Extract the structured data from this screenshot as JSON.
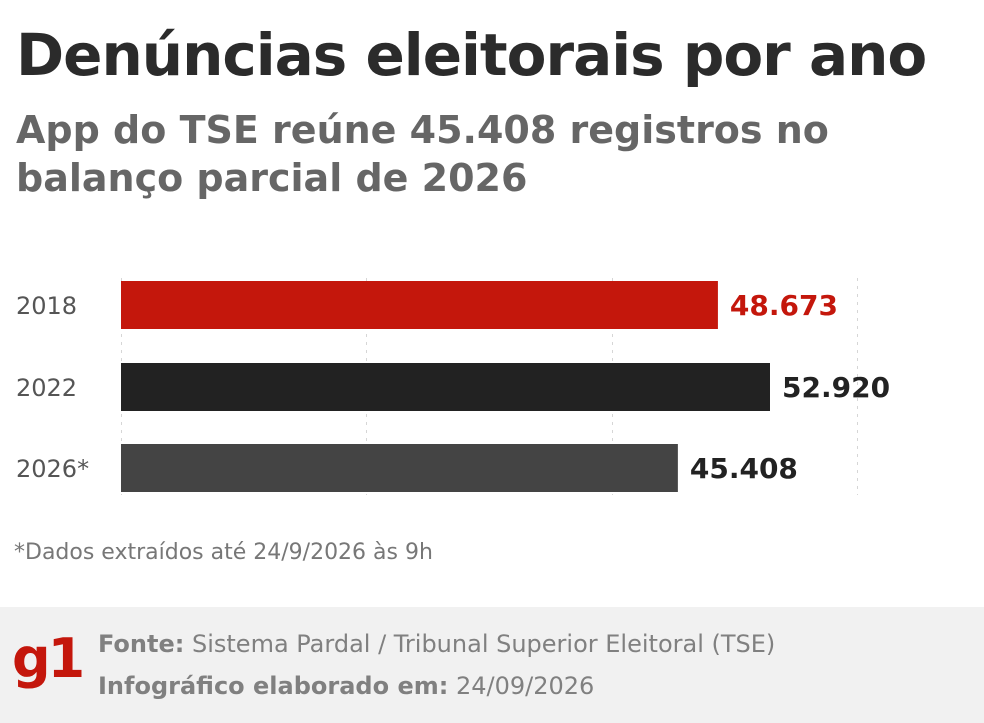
{
  "title": "Denúncias eleitorais por ano",
  "subtitle": "App do TSE reúne 45.408 registros no balanço parcial de 2026",
  "footnote": "*Dados extraídos até 24/9/2026 às 9h",
  "footer": {
    "logo_text": "g1",
    "source_label": "Fonte:",
    "source_text": "Sistema Pardal / Tribunal Superior Eleitoral (TSE)",
    "date_label": "Infográfico elaborado em:",
    "date_text": "24/09/2026"
  },
  "colors": {
    "brand_red": "#c4170c",
    "bar_2022": "#222222",
    "bar_2026": "#444444"
  },
  "chart_data": {
    "type": "bar",
    "orientation": "horizontal",
    "categories": [
      "2018",
      "2022",
      "2026*"
    ],
    "values": [
      48673,
      52920,
      45408
    ],
    "value_labels": [
      "48.673",
      "52.920",
      "45.408"
    ],
    "bar_colors": [
      "#c4170c",
      "#222222",
      "#444444"
    ],
    "label_colors": [
      "#c4170c",
      "#222222",
      "#222222"
    ],
    "xlim": [
      0,
      60000
    ],
    "grid": true
  }
}
